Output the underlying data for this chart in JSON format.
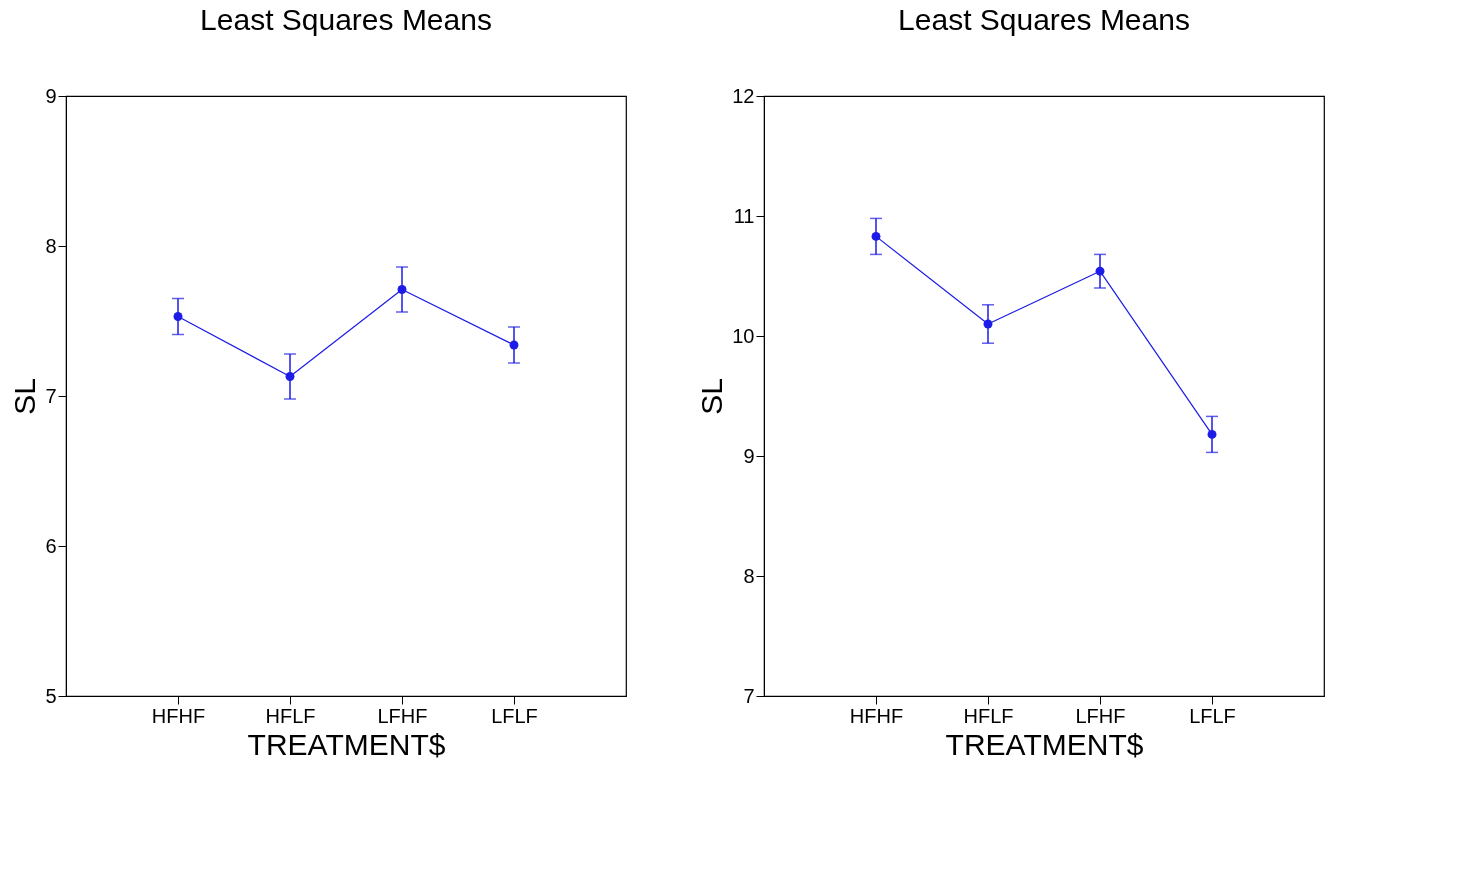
{
  "chart_data": [
    {
      "type": "line",
      "title": "Least Squares Means",
      "xlabel": "TREATMENT$",
      "ylabel": "SL",
      "categories": [
        "HFHF",
        "HFLF",
        "LFHF",
        "LFLF"
      ],
      "series": [
        {
          "color": "#1c1ce6",
          "values": [
            7.53,
            7.13,
            7.71,
            7.34
          ],
          "errors": [
            0.12,
            0.15,
            0.15,
            0.12
          ]
        }
      ],
      "ylim": [
        5,
        9
      ],
      "yticks": [
        5,
        6,
        7,
        8,
        9
      ],
      "marker": "circle",
      "line_style": "solid"
    },
    {
      "type": "line",
      "title": "Least Squares Means",
      "xlabel": "TREATMENT$",
      "ylabel": "SL",
      "categories": [
        "HFHF",
        "HFLF",
        "LFHF",
        "LFLF"
      ],
      "series": [
        {
          "color": "#1c1ce6",
          "values": [
            10.83,
            10.1,
            10.54,
            9.18
          ],
          "errors": [
            0.15,
            0.16,
            0.14,
            0.15
          ]
        }
      ],
      "ylim": [
        7,
        12
      ],
      "yticks": [
        7,
        8,
        9,
        10,
        11,
        12
      ],
      "marker": "circle",
      "line_style": "solid"
    }
  ]
}
